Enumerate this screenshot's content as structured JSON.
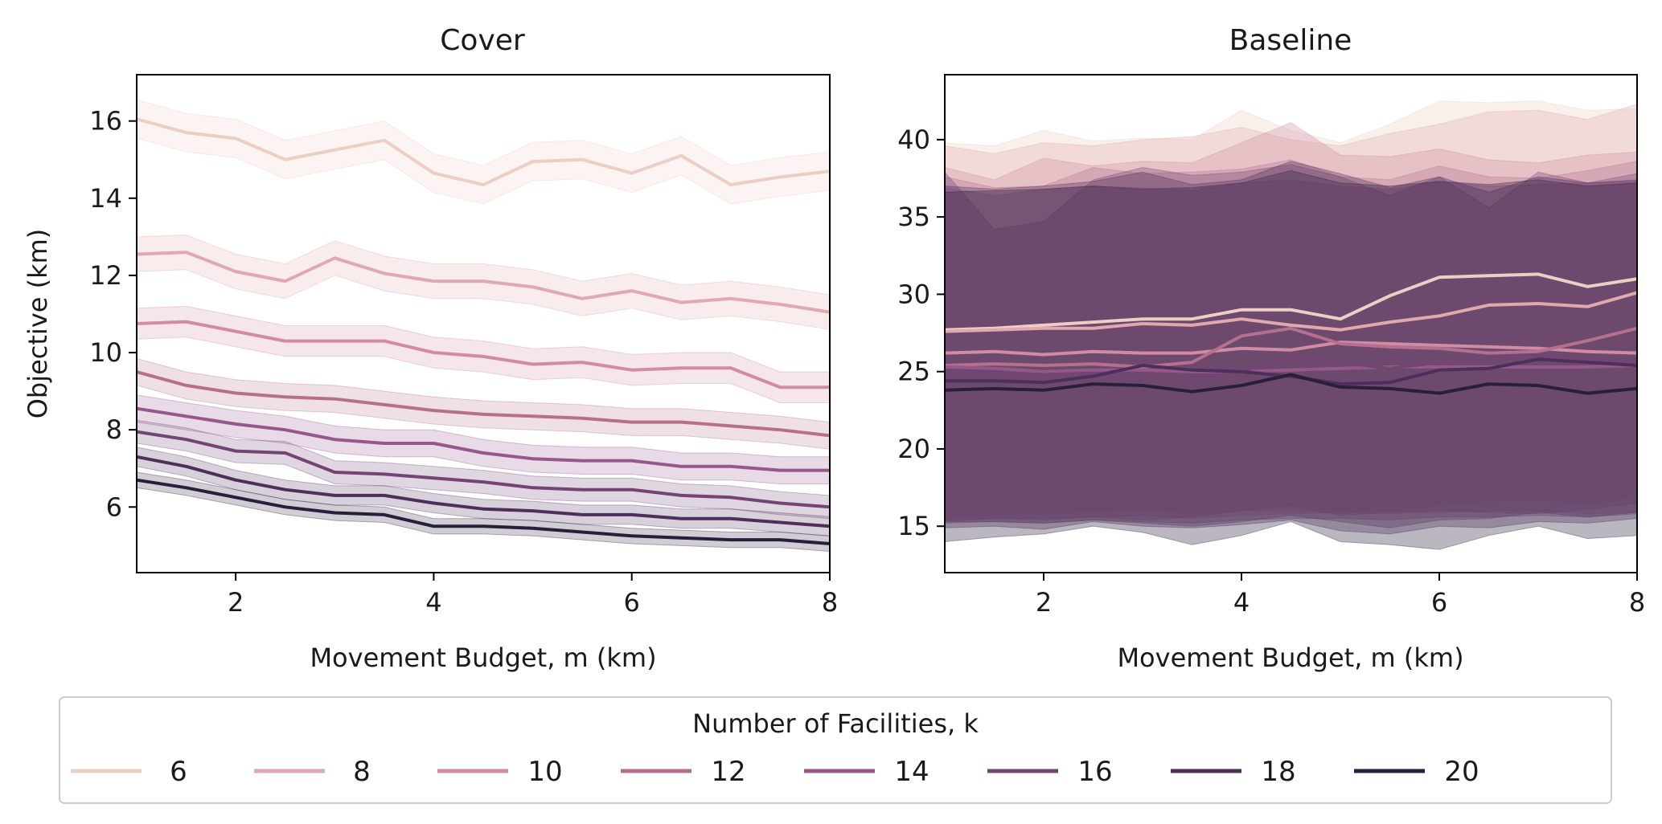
{
  "colors": {
    "6": "#ebcfc5",
    "8": "#dfaaaf",
    "10": "#cf8ca3",
    "12": "#b5708f",
    "14": "#95588b",
    "16": "#744475",
    "18": "#4e2f5b",
    "20": "#2a1e3d"
  },
  "legend": {
    "title": "Number of Facilities, k",
    "placement": "bottom-center",
    "entries": [
      "6",
      "8",
      "10",
      "12",
      "14",
      "16",
      "18",
      "20"
    ]
  },
  "chart_data": [
    {
      "type": "line",
      "title": "Cover",
      "xlabel": "Movement Budget, m (km)",
      "ylabel": "Objective (km)",
      "xlim": [
        1,
        8
      ],
      "ylim": [
        4.3,
        17.2
      ],
      "xticks": [
        "2",
        "4",
        "6",
        "8"
      ],
      "yticks": [
        "6",
        "8",
        "10",
        "12",
        "14",
        "16"
      ],
      "x": [
        1,
        1.5,
        2,
        2.5,
        3,
        3.5,
        4,
        4.5,
        5,
        5.5,
        6,
        6.5,
        7,
        7.5,
        8
      ],
      "series": [
        {
          "name": "6",
          "values": [
            16.05,
            15.7,
            15.55,
            15.0,
            15.25,
            15.5,
            14.65,
            14.35,
            14.95,
            15.0,
            14.65,
            15.1,
            14.35,
            14.55,
            14.7
          ],
          "band": 0.5
        },
        {
          "name": "8",
          "values": [
            12.55,
            12.6,
            12.1,
            11.85,
            12.45,
            12.05,
            11.85,
            11.85,
            11.7,
            11.4,
            11.6,
            11.3,
            11.4,
            11.25,
            11.05
          ],
          "band": 0.45
        },
        {
          "name": "10",
          "values": [
            10.75,
            10.8,
            10.55,
            10.3,
            10.3,
            10.3,
            10.0,
            9.9,
            9.7,
            9.75,
            9.55,
            9.6,
            9.6,
            9.1,
            9.1
          ],
          "band": 0.4
        },
        {
          "name": "12",
          "values": [
            9.5,
            9.15,
            8.95,
            8.85,
            8.8,
            8.65,
            8.5,
            8.4,
            8.35,
            8.3,
            8.2,
            8.2,
            8.1,
            8.0,
            7.85
          ],
          "band": 0.35
        },
        {
          "name": "14",
          "values": [
            8.55,
            8.35,
            8.15,
            8.0,
            7.75,
            7.65,
            7.65,
            7.4,
            7.25,
            7.2,
            7.2,
            7.05,
            7.05,
            6.95,
            6.95
          ],
          "band": 0.35
        },
        {
          "name": "16",
          "values": [
            7.95,
            7.75,
            7.45,
            7.4,
            6.9,
            6.85,
            6.75,
            6.65,
            6.5,
            6.45,
            6.45,
            6.3,
            6.25,
            6.1,
            6.0
          ],
          "band": 0.3
        },
        {
          "name": "18",
          "values": [
            7.3,
            7.05,
            6.7,
            6.45,
            6.3,
            6.3,
            6.1,
            5.95,
            5.9,
            5.8,
            5.8,
            5.7,
            5.7,
            5.6,
            5.5
          ],
          "band": 0.25
        },
        {
          "name": "20",
          "values": [
            6.7,
            6.5,
            6.25,
            6.0,
            5.85,
            5.8,
            5.5,
            5.5,
            5.45,
            5.35,
            5.25,
            5.2,
            5.15,
            5.15,
            5.05
          ],
          "band": 0.2
        }
      ]
    },
    {
      "type": "line",
      "title": "Baseline",
      "xlabel": "Movement Budget, m (km)",
      "ylabel": "",
      "xlim": [
        1,
        8
      ],
      "ylim": [
        12.0,
        44.2
      ],
      "xticks": [
        "2",
        "4",
        "6",
        "8"
      ],
      "yticks": [
        "15",
        "20",
        "25",
        "30",
        "35",
        "40"
      ],
      "x": [
        1,
        1.5,
        2,
        2.5,
        3,
        3.5,
        4,
        4.5,
        5,
        5.5,
        6,
        6.5,
        7,
        7.5,
        8
      ],
      "series": [
        {
          "name": "6",
          "values": [
            27.7,
            27.8,
            28.0,
            28.2,
            28.4,
            28.4,
            29.0,
            29.0,
            28.4,
            29.9,
            31.1,
            31.2,
            31.3,
            30.5,
            31.0
          ],
          "band_lo": [
            15.8,
            16.0,
            16.2,
            16.1,
            16.3,
            16.1,
            16.3,
            16.4,
            16.2,
            16.5,
            17.0,
            17.3,
            17.5,
            17.2,
            17.5
          ],
          "band_hi": [
            39.8,
            39.6,
            40.6,
            39.9,
            40.1,
            40.0,
            41.9,
            40.6,
            39.8,
            41.0,
            42.5,
            42.4,
            42.5,
            41.9,
            42.0
          ]
        },
        {
          "name": "8",
          "values": [
            27.6,
            27.7,
            27.8,
            27.8,
            28.1,
            28.0,
            28.4,
            28.0,
            27.7,
            28.2,
            28.6,
            29.3,
            29.4,
            29.2,
            30.1
          ],
          "band_lo": [
            15.5,
            15.7,
            15.8,
            15.9,
            16.0,
            15.8,
            16.0,
            16.0,
            15.8,
            16.0,
            16.3,
            16.6,
            16.7,
            16.4,
            16.8
          ],
          "band_hi": [
            39.6,
            39.1,
            39.8,
            39.6,
            40.0,
            40.2,
            40.8,
            40.0,
            39.6,
            40.4,
            41.0,
            41.8,
            41.9,
            41.3,
            42.3
          ]
        },
        {
          "name": "10",
          "values": [
            26.2,
            26.3,
            26.1,
            26.3,
            26.2,
            26.2,
            26.5,
            26.4,
            26.9,
            26.8,
            26.7,
            26.6,
            26.5,
            26.3,
            26.2
          ],
          "band_lo": [
            15.4,
            15.5,
            15.5,
            15.6,
            15.7,
            15.5,
            15.7,
            15.8,
            15.9,
            15.8,
            15.9,
            16.0,
            16.0,
            15.8,
            15.9
          ],
          "band_hi": [
            38.2,
            37.4,
            38.8,
            38.3,
            38.6,
            38.5,
            39.8,
            41.1,
            39.0,
            38.9,
            39.4,
            38.7,
            38.5,
            39.0,
            39.2
          ]
        },
        {
          "name": "12",
          "values": [
            25.4,
            25.5,
            25.4,
            25.5,
            25.3,
            25.6,
            27.3,
            27.8,
            26.8,
            26.6,
            26.5,
            26.2,
            26.3,
            27.0,
            27.8
          ],
          "band_lo": [
            15.3,
            15.5,
            15.4,
            15.6,
            15.4,
            15.6,
            16.0,
            16.3,
            15.7,
            15.9,
            16.0,
            15.9,
            15.8,
            16.1,
            16.5
          ],
          "band_hi": [
            37.6,
            36.9,
            37.0,
            38.2,
            37.8,
            37.9,
            38.1,
            38.7,
            37.6,
            37.4,
            38.3,
            37.6,
            37.5,
            38.0,
            38.6
          ]
        },
        {
          "name": "14",
          "values": [
            25.3,
            25.2,
            25.0,
            25.1,
            25.1,
            25.0,
            25.0,
            25.1,
            25.2,
            25.3,
            25.3,
            25.3,
            25.3,
            25.3,
            25.4
          ],
          "band_lo": [
            15.2,
            15.3,
            15.2,
            15.4,
            15.3,
            15.2,
            15.4,
            15.5,
            15.5,
            15.4,
            15.6,
            15.6,
            15.7,
            15.6,
            15.8
          ],
          "band_hi": [
            36.9,
            36.4,
            36.8,
            37.0,
            36.9,
            36.7,
            37.2,
            37.4,
            37.0,
            36.8,
            37.3,
            37.0,
            37.1,
            37.2,
            37.3
          ]
        },
        {
          "name": "16",
          "values": [
            25.0,
            24.9,
            24.8,
            24.9,
            24.6,
            24.5,
            25.0,
            26.0,
            25.6,
            25.2,
            25.6,
            25.8,
            26.0,
            25.8,
            25.6
          ],
          "band_lo": [
            15.3,
            15.3,
            15.2,
            15.4,
            15.2,
            15.0,
            15.3,
            15.7,
            15.3,
            14.9,
            15.4,
            15.5,
            15.9,
            15.6,
            15.9
          ],
          "band_hi": [
            37.9,
            34.2,
            34.7,
            37.4,
            38.2,
            37.7,
            37.9,
            38.4,
            37.6,
            36.4,
            37.6,
            35.6,
            37.9,
            37.2,
            37.8
          ]
        },
        {
          "name": "18",
          "values": [
            24.4,
            24.4,
            24.3,
            24.7,
            25.4,
            25.1,
            25.0,
            24.7,
            24.2,
            24.3,
            25.1,
            25.2,
            25.8,
            25.6,
            25.4
          ],
          "band_lo": [
            14.9,
            15.0,
            14.8,
            15.3,
            15.0,
            14.9,
            15.1,
            15.4,
            14.7,
            14.5,
            15.0,
            14.9,
            15.3,
            15.2,
            15.5
          ],
          "band_hi": [
            37.0,
            36.8,
            37.0,
            37.3,
            37.9,
            37.1,
            37.4,
            38.6,
            37.8,
            36.9,
            37.6,
            36.6,
            37.6,
            37.2,
            37.4
          ]
        },
        {
          "name": "20",
          "values": [
            23.8,
            23.9,
            23.8,
            24.2,
            24.1,
            23.7,
            24.1,
            24.8,
            24.0,
            23.9,
            23.6,
            24.2,
            24.1,
            23.6,
            23.9
          ],
          "band_lo": [
            14.0,
            14.3,
            14.5,
            15.0,
            14.6,
            13.8,
            14.4,
            15.3,
            14.0,
            13.8,
            13.5,
            14.4,
            15.0,
            14.2,
            14.4
          ],
          "band_hi": [
            36.6,
            36.7,
            36.8,
            37.0,
            36.8,
            36.9,
            37.2,
            38.0,
            37.2,
            37.0,
            37.3,
            37.1,
            37.4,
            37.0,
            37.2
          ]
        }
      ]
    }
  ]
}
